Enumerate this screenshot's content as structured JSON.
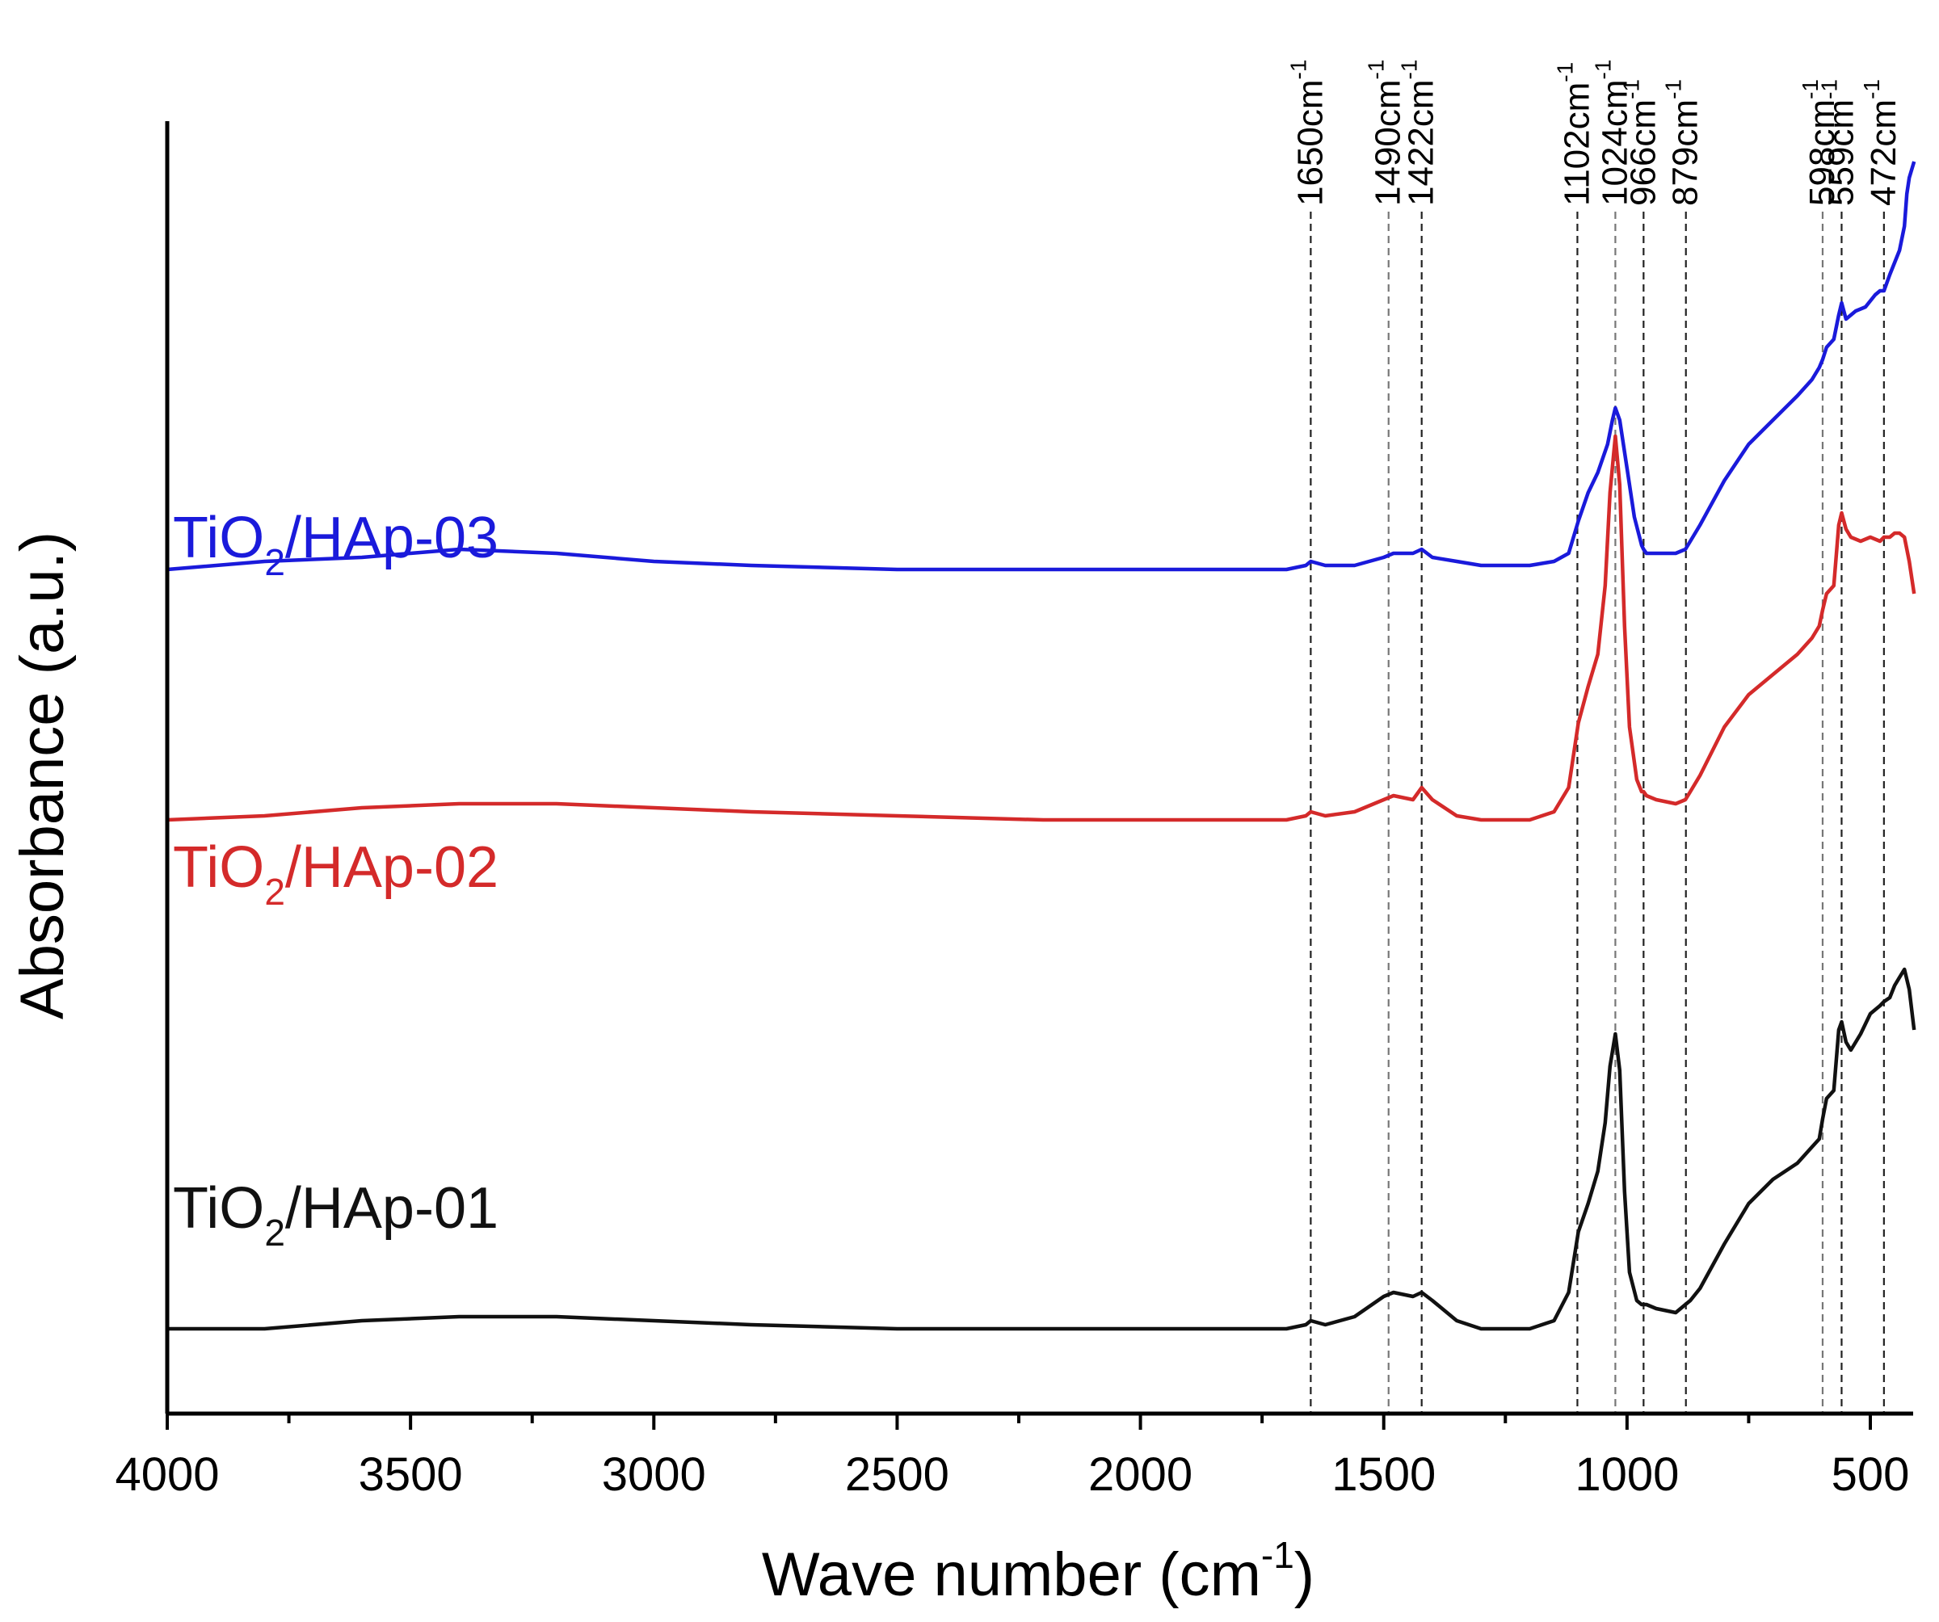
{
  "chart_data": {
    "type": "line",
    "title": "",
    "xlabel": "Wave number (cm",
    "xlabel_sup": "-1",
    "xlabel_suffix": ")",
    "ylabel": "Absorbance (a.u.)",
    "xlim": [
      4000,
      400
    ],
    "x_reversed": true,
    "y_ticks_shown": false,
    "x_ticks": [
      4000,
      3500,
      3000,
      2500,
      2000,
      1500,
      1000,
      500
    ],
    "x_tick_labels": [
      "4000",
      "3500",
      "3000",
      "2500",
      "2000",
      "1500",
      "1000",
      "500"
    ],
    "ylim": [
      0,
      3.2
    ],
    "peak_markers": [
      {
        "wavenumber": 1650,
        "label": "1650cm",
        "sup": "-1"
      },
      {
        "wavenumber": 1490,
        "label": "1490cm",
        "sup": "-1"
      },
      {
        "wavenumber": 1422,
        "label": "1422cm",
        "sup": "-1"
      },
      {
        "wavenumber": 1102,
        "label": "1102cm",
        "sup": "-1"
      },
      {
        "wavenumber": 1024,
        "label": "1024cm",
        "sup": "-1"
      },
      {
        "wavenumber": 966,
        "label": "966cm",
        "sup": "-1"
      },
      {
        "wavenumber": 879,
        "label": "879cm",
        "sup": "-1"
      },
      {
        "wavenumber": 598,
        "label": "598cm",
        "sup": "-1"
      },
      {
        "wavenumber": 559,
        "label": "559cm",
        "sup": "-1"
      },
      {
        "wavenumber": 472,
        "label": "472cm",
        "sup": "-1"
      }
    ],
    "series": [
      {
        "name": "TiO2/HAp-03",
        "label_main": "TiO",
        "label_sub": "2",
        "label_rest": "/HAp-03",
        "color": "#1a1adb",
        "x": [
          4000,
          3800,
          3600,
          3400,
          3200,
          3000,
          2800,
          2500,
          2200,
          2000,
          1800,
          1700,
          1660,
          1650,
          1620,
          1560,
          1500,
          1480,
          1440,
          1422,
          1400,
          1350,
          1300,
          1200,
          1150,
          1120,
          1100,
          1080,
          1060,
          1040,
          1030,
          1024,
          1015,
          1000,
          985,
          970,
          966,
          960,
          940,
          900,
          880,
          870,
          850,
          800,
          750,
          700,
          650,
          620,
          605,
          598,
          590,
          575,
          565,
          559,
          550,
          530,
          510,
          490,
          480,
          472,
          460,
          440,
          430,
          425,
          420,
          415,
          410
        ],
        "y": [
          2.09,
          2.11,
          2.12,
          2.14,
          2.13,
          2.11,
          2.1,
          2.09,
          2.09,
          2.09,
          2.09,
          2.09,
          2.1,
          2.11,
          2.1,
          2.1,
          2.12,
          2.13,
          2.13,
          2.14,
          2.12,
          2.11,
          2.1,
          2.1,
          2.11,
          2.13,
          2.21,
          2.28,
          2.33,
          2.4,
          2.46,
          2.49,
          2.46,
          2.34,
          2.22,
          2.15,
          2.14,
          2.13,
          2.13,
          2.13,
          2.14,
          2.16,
          2.2,
          2.31,
          2.4,
          2.46,
          2.52,
          2.56,
          2.59,
          2.61,
          2.64,
          2.66,
          2.72,
          2.75,
          2.71,
          2.73,
          2.74,
          2.77,
          2.78,
          2.78,
          2.82,
          2.88,
          2.94,
          3.02,
          3.06,
          3.08,
          3.1
        ]
      },
      {
        "name": "TiO2/HAp-02",
        "label_main": "TiO",
        "label_sub": "2",
        "label_rest": "/HAp-02",
        "color": "#d42a2a",
        "x": [
          4000,
          3800,
          3600,
          3400,
          3200,
          3000,
          2800,
          2500,
          2200,
          2000,
          1800,
          1700,
          1660,
          1650,
          1620,
          1560,
          1500,
          1480,
          1440,
          1422,
          1400,
          1350,
          1300,
          1200,
          1150,
          1120,
          1100,
          1080,
          1060,
          1045,
          1035,
          1024,
          1015,
          1005,
          995,
          980,
          970,
          966,
          960,
          940,
          900,
          880,
          870,
          850,
          800,
          750,
          700,
          650,
          620,
          605,
          598,
          590,
          575,
          565,
          559,
          550,
          540,
          520,
          500,
          480,
          472,
          460,
          450,
          440,
          430,
          420,
          410
        ],
        "y": [
          1.47,
          1.48,
          1.5,
          1.51,
          1.51,
          1.5,
          1.49,
          1.48,
          1.47,
          1.47,
          1.47,
          1.47,
          1.48,
          1.49,
          1.48,
          1.49,
          1.52,
          1.53,
          1.52,
          1.55,
          1.52,
          1.48,
          1.47,
          1.47,
          1.49,
          1.55,
          1.71,
          1.8,
          1.88,
          2.05,
          2.28,
          2.42,
          2.3,
          1.95,
          1.7,
          1.57,
          1.54,
          1.54,
          1.53,
          1.52,
          1.51,
          1.52,
          1.54,
          1.58,
          1.7,
          1.78,
          1.83,
          1.88,
          1.92,
          1.95,
          1.99,
          2.03,
          2.05,
          2.2,
          2.23,
          2.19,
          2.17,
          2.16,
          2.17,
          2.16,
          2.17,
          2.17,
          2.18,
          2.18,
          2.17,
          2.11,
          2.03
        ]
      },
      {
        "name": "TiO2/HAp-01",
        "label_main": "TiO",
        "label_sub": "2",
        "label_rest": "/HAp-01",
        "color": "#111111",
        "x": [
          4000,
          3800,
          3600,
          3400,
          3200,
          3000,
          2800,
          2500,
          2200,
          2000,
          1800,
          1700,
          1660,
          1650,
          1620,
          1560,
          1500,
          1480,
          1440,
          1422,
          1400,
          1350,
          1300,
          1200,
          1150,
          1120,
          1100,
          1080,
          1060,
          1045,
          1035,
          1024,
          1015,
          1005,
          995,
          980,
          970,
          966,
          960,
          940,
          900,
          880,
          870,
          850,
          800,
          750,
          700,
          650,
          620,
          605,
          598,
          590,
          575,
          565,
          559,
          550,
          540,
          520,
          500,
          480,
          472,
          460,
          450,
          440,
          430,
          420,
          410
        ],
        "y": [
          0.21,
          0.21,
          0.23,
          0.24,
          0.24,
          0.23,
          0.22,
          0.21,
          0.21,
          0.21,
          0.21,
          0.21,
          0.22,
          0.23,
          0.22,
          0.24,
          0.29,
          0.3,
          0.29,
          0.3,
          0.28,
          0.23,
          0.21,
          0.21,
          0.23,
          0.3,
          0.45,
          0.52,
          0.6,
          0.72,
          0.86,
          0.94,
          0.85,
          0.55,
          0.35,
          0.28,
          0.27,
          0.27,
          0.27,
          0.26,
          0.25,
          0.27,
          0.28,
          0.31,
          0.42,
          0.52,
          0.58,
          0.62,
          0.66,
          0.68,
          0.73,
          0.78,
          0.8,
          0.95,
          0.97,
          0.92,
          0.9,
          0.94,
          0.99,
          1.01,
          1.02,
          1.03,
          1.06,
          1.08,
          1.1,
          1.05,
          0.95
        ]
      }
    ]
  }
}
